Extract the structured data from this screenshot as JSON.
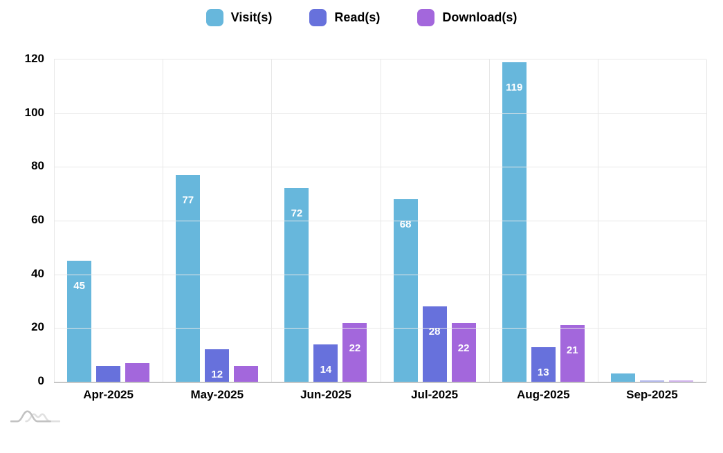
{
  "chart_data": {
    "type": "bar",
    "title": "",
    "categories": [
      "Apr-2025",
      "May-2025",
      "Jun-2025",
      "Jul-2025",
      "Aug-2025",
      "Sep-2025"
    ],
    "series": [
      {
        "name": "Visit(s)",
        "color": "#67b7dc",
        "values": [
          45,
          77,
          72,
          68,
          119,
          3
        ]
      },
      {
        "name": "Read(s)",
        "color": "#6771dc",
        "values": [
          6,
          12,
          14,
          28,
          13,
          0
        ]
      },
      {
        "name": "Download(s)",
        "color": "#a367dc",
        "values": [
          7,
          6,
          22,
          22,
          21,
          0
        ]
      }
    ],
    "ylim": [
      0,
      120
    ],
    "y_ticks": [
      0,
      20,
      40,
      60,
      80,
      100,
      120
    ],
    "grid": true,
    "legend_position": "top",
    "xlabel": "",
    "ylabel": ""
  },
  "colors": {
    "background": "#ffffff",
    "grid_line": "#e7e7e7",
    "axis_line": "#c6c6c6",
    "axis_text": "#000000",
    "bar_value_label": "#ffffff",
    "watermark_front": "#c2c2c2",
    "watermark_back": "#e0e0e0"
  },
  "watermark": {
    "icon": "amcharts-logo"
  }
}
